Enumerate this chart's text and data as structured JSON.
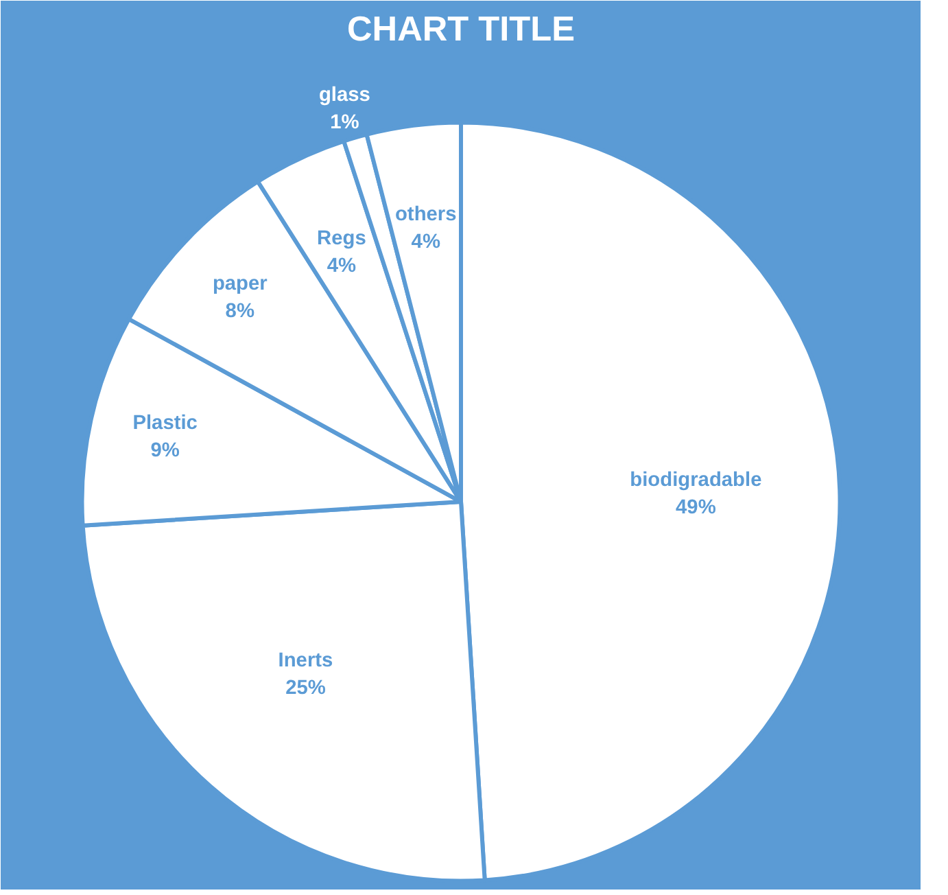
{
  "chart_data": {
    "type": "pie",
    "title": "CHART TITLE",
    "categories": [
      "biodigradable",
      "Inerts",
      "Plastic",
      "paper",
      "Regs",
      "glass",
      "others"
    ],
    "values": [
      49,
      25,
      9,
      8,
      4,
      1,
      4
    ],
    "value_labels": [
      "49%",
      "25%",
      "9%",
      "8%",
      "4%",
      "1%",
      "4%"
    ],
    "colors": [
      "#ffffff",
      "#ffffff",
      "#ffffff",
      "#ffffff",
      "#ffffff",
      "#ffffff",
      "#ffffff"
    ],
    "legend": false
  }
}
